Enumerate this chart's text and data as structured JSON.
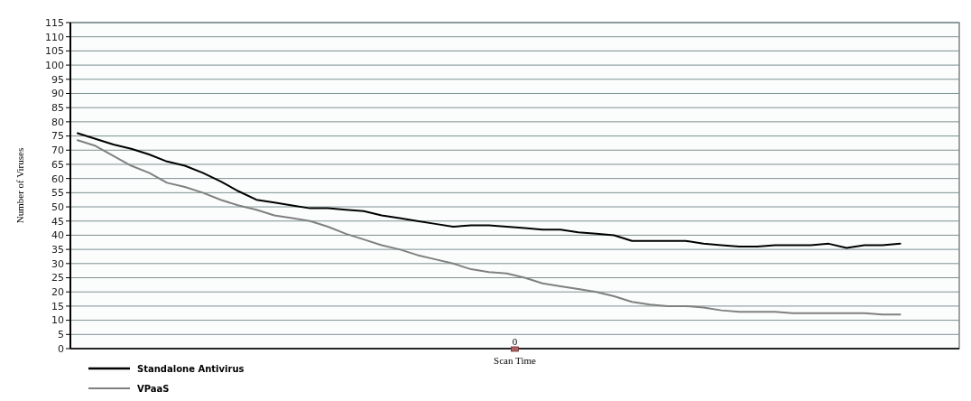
{
  "chart_data": {
    "type": "line",
    "xlabel": "Scan Time",
    "ylabel": "Number of Viruses",
    "categories": [
      null,
      null,
      null,
      null,
      null,
      null,
      null,
      null,
      null,
      null,
      null,
      null,
      null,
      null,
      null,
      null,
      null,
      null,
      null,
      null,
      null,
      null,
      null,
      null,
      null,
      null,
      null,
      null,
      null,
      null,
      null,
      null,
      null,
      null,
      null,
      null,
      null,
      null,
      null,
      null,
      null,
      null,
      null,
      null,
      null,
      null,
      null,
      null,
      null,
      null
    ],
    "series": [
      {
        "name": "Standalone Antivirus",
        "color": "#000000",
        "values": [
          76,
          74,
          72,
          70.5,
          68.5,
          66,
          64.5,
          62,
          59,
          55.5,
          52.5,
          51.5,
          50.5,
          49.5,
          49.5,
          49,
          48.5,
          47,
          46,
          45,
          44,
          43,
          43.5,
          43.5,
          43,
          42.5,
          42,
          42,
          41,
          40.5,
          40,
          38,
          38,
          38,
          38,
          37,
          36.5,
          36,
          36,
          36.5,
          36.5,
          36.5,
          37,
          35.5,
          36.5,
          36.5,
          37,
          null,
          null,
          null
        ]
      },
      {
        "name": "VPaaS",
        "color": "#808080",
        "values": [
          73.5,
          71.5,
          68,
          64.5,
          62,
          58.5,
          57,
          55,
          52.5,
          50.5,
          49,
          47,
          46,
          45,
          43,
          40.5,
          38.5,
          36.5,
          35,
          33,
          31.5,
          30,
          28,
          27,
          26.5,
          25,
          23,
          22,
          21,
          20,
          18.5,
          16.5,
          15.5,
          15,
          15,
          14.5,
          13.5,
          13,
          13,
          13,
          12.5,
          12.5,
          12.5,
          12.5,
          12.5,
          12,
          12,
          null,
          null,
          null
        ]
      }
    ],
    "ylim": [
      0,
      115
    ],
    "yticks": [
      0,
      5,
      10,
      15,
      20,
      25,
      30,
      35,
      40,
      45,
      50,
      55,
      60,
      65,
      70,
      75,
      80,
      85,
      90,
      95,
      100,
      105,
      110,
      115
    ],
    "grid": "y",
    "legend": "bottom left",
    "marker": "none",
    "line_style": "solid",
    "annotations": [
      "0"
    ]
  }
}
